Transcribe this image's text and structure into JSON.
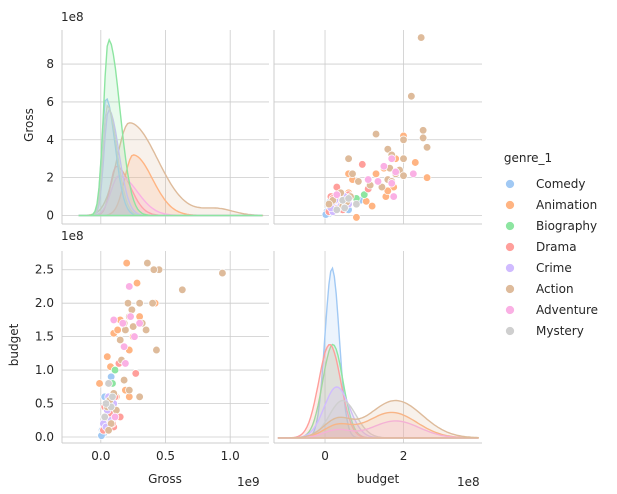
{
  "chart_data": {
    "type": "scatter",
    "title": "",
    "variables": [
      "Gross",
      "budget"
    ],
    "offset_labels": {
      "gross_y": "1e8",
      "budget_y": "1e8",
      "gross_x": "1e9",
      "budget_x": "1e8"
    },
    "axis_labels": {
      "row0": "Gross",
      "row1": "budget",
      "col0": "Gross",
      "col1": "budget"
    },
    "ticks": {
      "gross_y": {
        "values": [
          0,
          2,
          4,
          6,
          8
        ],
        "labels": [
          "0",
          "2",
          "4",
          "6",
          "8"
        ]
      },
      "budget_y": {
        "values": [
          0.0,
          0.5,
          1.0,
          1.5,
          2.0,
          2.5
        ],
        "labels": [
          "0.0",
          "0.5",
          "1.0",
          "1.5",
          "2.0",
          "2.5"
        ]
      },
      "gross_x": {
        "values": [
          0.0,
          0.5,
          1.0
        ],
        "labels": [
          "0.0",
          "0.5",
          "1.0"
        ]
      },
      "budget_x": {
        "values": [
          0,
          2
        ],
        "labels": [
          "0",
          "2"
        ]
      }
    },
    "ranges": {
      "gross_y_1e8": [
        -0.45,
        9.8
      ],
      "budget_y_1e8": [
        -0.09,
        2.78
      ],
      "gross_x_1e9": [
        -0.3,
        1.3
      ],
      "budget_x_1e8": [
        -1.3,
        4.0
      ]
    },
    "legend": {
      "title": "genre_1",
      "position": "right",
      "entries": [
        {
          "name": "Comedy",
          "color": "#a1c9f4"
        },
        {
          "name": "Animation",
          "color": "#ffb482"
        },
        {
          "name": "Biography",
          "color": "#8de5a1"
        },
        {
          "name": "Drama",
          "color": "#ff9f9b"
        },
        {
          "name": "Crime",
          "color": "#d0bbff"
        },
        {
          "name": "Action",
          "color": "#debb9b"
        },
        {
          "name": "Adventure",
          "color": "#fab0e4"
        },
        {
          "name": "Mystery",
          "color": "#cfcfcf"
        }
      ]
    },
    "series": [
      {
        "name": "Comedy",
        "points": [
          [
            0.2,
            0.05
          ],
          [
            0.1,
            0.1
          ],
          [
            0.4,
            0.15
          ],
          [
            0.6,
            0.3
          ],
          [
            0.3,
            0.6
          ],
          [
            0.8,
            0.9
          ],
          [
            0.5,
            0.2
          ],
          [
            0.9,
            0.45
          ],
          [
            0.15,
            0.08
          ],
          [
            0.7,
            0.12
          ],
          [
            0.35,
            0.25
          ],
          [
            0.05,
            0.02
          ]
        ]
      },
      {
        "name": "Animation",
        "points": [
          [
            4.2,
            2.0
          ],
          [
            2.0,
            2.6
          ],
          [
            1.5,
            1.75
          ],
          [
            1.0,
            1.55
          ],
          [
            0.75,
            1.05
          ],
          [
            0.5,
            1.2
          ],
          [
            2.5,
            1.5
          ],
          [
            3.0,
            1.8
          ],
          [
            2.8,
            2.3
          ],
          [
            2.2,
            1.3
          ],
          [
            1.9,
            0.7
          ],
          [
            1.3,
            1.6
          ],
          [
            0.8,
            0.35
          ],
          [
            1.2,
            0.6
          ],
          [
            -0.1,
            0.8
          ],
          [
            2.2,
            0.6
          ]
        ]
      },
      {
        "name": "Biography",
        "points": [
          [
            1.0,
            0.5
          ],
          [
            1.1,
            1.0
          ],
          [
            0.5,
            0.4
          ],
          [
            0.3,
            0.3
          ],
          [
            0.8,
            0.55
          ],
          [
            1.2,
            0.35
          ],
          [
            0.6,
            0.2
          ],
          [
            0.9,
            0.8
          ]
        ]
      },
      {
        "name": "Drama",
        "points": [
          [
            0.2,
            0.1
          ],
          [
            0.4,
            0.25
          ],
          [
            0.8,
            0.35
          ],
          [
            1.0,
            0.15
          ],
          [
            1.4,
            1.1
          ],
          [
            2.7,
            0.95
          ],
          [
            0.6,
            0.6
          ],
          [
            1.2,
            0.4
          ],
          [
            1.5,
            0.3
          ],
          [
            0.3,
            0.45
          ],
          [
            0.9,
            0.2
          ],
          [
            1.1,
            0.6
          ]
        ]
      },
      {
        "name": "Crime",
        "points": [
          [
            0.3,
            0.3
          ],
          [
            0.5,
            0.4
          ],
          [
            0.7,
            0.2
          ],
          [
            0.2,
            0.2
          ],
          [
            1.0,
            0.5
          ],
          [
            0.6,
            0.6
          ],
          [
            0.8,
            0.25
          ],
          [
            0.4,
            0.15
          ]
        ]
      },
      {
        "name": "Action",
        "points": [
          [
            9.4,
            2.45
          ],
          [
            6.3,
            2.2
          ],
          [
            4.5,
            2.5
          ],
          [
            4.3,
            1.3
          ],
          [
            4.1,
            2.5
          ],
          [
            4.0,
            2.0
          ],
          [
            3.5,
            1.6
          ],
          [
            3.0,
            2.0
          ],
          [
            3.2,
            1.7
          ],
          [
            2.5,
            1.65
          ],
          [
            2.4,
            1.9
          ],
          [
            2.1,
            2.0
          ],
          [
            1.9,
            1.6
          ],
          [
            1.8,
            1.7
          ],
          [
            1.5,
            1.45
          ],
          [
            1.6,
            1.15
          ],
          [
            3.0,
            0.6
          ],
          [
            2.2,
            0.7
          ],
          [
            1.0,
            0.65
          ],
          [
            0.5,
            0.45
          ],
          [
            0.8,
            0.2
          ],
          [
            1.2,
            0.4
          ],
          [
            0.6,
            0.1
          ],
          [
            0.7,
            0.55
          ],
          [
            3.6,
            2.6
          ],
          [
            2.2,
            1.8
          ],
          [
            1.8,
            0.85
          ]
        ]
      },
      {
        "name": "Adventure",
        "points": [
          [
            1.7,
            1.7
          ],
          [
            2.6,
            1.5
          ],
          [
            2.2,
            2.25
          ],
          [
            1.8,
            1.35
          ],
          [
            1.0,
            1.75
          ],
          [
            2.3,
            1.8
          ],
          [
            3.0,
            1.7
          ],
          [
            0.8,
            0.45
          ],
          [
            1.1,
            0.3
          ],
          [
            1.9,
            1.1
          ]
        ]
      },
      {
        "name": "Mystery",
        "points": [
          [
            0.6,
            0.8
          ],
          [
            0.3,
            0.3
          ],
          [
            0.8,
            0.45
          ],
          [
            0.4,
            0.5
          ],
          [
            0.9,
            0.6
          ]
        ]
      }
    ],
    "kde_gross": [
      {
        "name": "Action",
        "peak": 0.22,
        "peak_height": 4.9,
        "width": 1.25,
        "tail": [
          0.9,
          0.35,
          0.25
        ]
      },
      {
        "name": "Animation",
        "peak": 0.25,
        "peak_height": 3.2,
        "width": 0.85,
        "tail": null
      },
      {
        "name": "Drama",
        "peak": 0.12,
        "peak_height": 2.6,
        "width": 0.6,
        "tail": null
      },
      {
        "name": "Adventure",
        "peak": 0.14,
        "peak_height": 2.1,
        "width": 0.8,
        "tail": null
      },
      {
        "name": "Crime",
        "peak": 0.06,
        "peak_height": 5.6,
        "width": 0.45,
        "tail": null
      },
      {
        "name": "Comedy",
        "peak": 0.04,
        "peak_height": 6.2,
        "width": 0.4,
        "tail": null
      },
      {
        "name": "Mystery",
        "peak": 0.05,
        "peak_height": 5.8,
        "width": 0.42,
        "tail": null
      },
      {
        "name": "Biography",
        "peak": 0.06,
        "peak_height": 9.3,
        "width": 0.5,
        "tail": null
      }
    ],
    "kde_budget": [
      {
        "name": "Comedy",
        "peak": 0.18,
        "peak_height": 1.0,
        "width": 0.9
      },
      {
        "name": "Biography",
        "peak": 0.2,
        "peak_height": 0.55,
        "width": 1.3
      },
      {
        "name": "Drama",
        "peak": 0.12,
        "peak_height": 0.55,
        "width": 1.4
      },
      {
        "name": "Crime",
        "peak": 0.3,
        "peak_height": 0.3,
        "width": 1.6
      },
      {
        "name": "Mystery",
        "peak": 0.45,
        "peak_height": 0.22,
        "width": 1.7
      },
      {
        "name": "Animation",
        "peak": 1.7,
        "peak_height": 0.15,
        "width": 3.2
      },
      {
        "name": "Adventure",
        "peak": 1.8,
        "peak_height": 0.1,
        "width": 3.0
      },
      {
        "name": "Action",
        "peak": 1.8,
        "peak_height": 0.22,
        "width": 3.4
      }
    ]
  }
}
